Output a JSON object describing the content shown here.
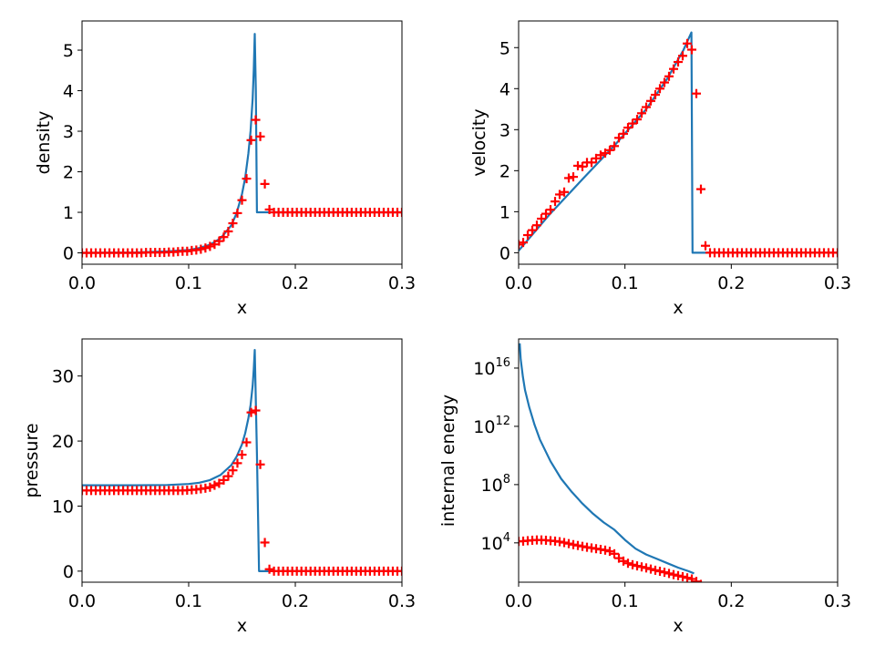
{
  "colors": {
    "line": "#1f77b4",
    "markers": "#ff0000"
  },
  "chart_data": [
    {
      "type": "line",
      "ylabel": "density",
      "xlabel": "x",
      "xlim": [
        0,
        0.3
      ],
      "ylim": [
        -0.28,
        5.72
      ],
      "xscale": "linear",
      "yscale": "linear",
      "xticks": [
        0.0,
        0.1,
        0.2,
        0.3
      ],
      "xtick_labels": [
        "0.0",
        "0.1",
        "0.2",
        "0.3"
      ],
      "yticks": [
        0,
        1,
        2,
        3,
        4,
        5
      ],
      "ytick_labels": [
        "0",
        "1",
        "2",
        "3",
        "4",
        "5"
      ],
      "grid": false,
      "series": [
        {
          "style": "line",
          "color": "#1f77b4",
          "x": [
            0,
            0.05,
            0.08,
            0.1,
            0.11,
            0.12,
            0.13,
            0.14,
            0.145,
            0.15,
            0.153,
            0.156,
            0.158,
            0.16,
            0.161,
            0.162,
            0.163,
            0.164,
            0.166,
            0.3
          ],
          "y": [
            0,
            0.01,
            0.04,
            0.07,
            0.12,
            0.2,
            0.36,
            0.68,
            0.98,
            1.45,
            1.85,
            2.45,
            3.0,
            3.8,
            4.5,
            5.4,
            4.0,
            1.0,
            1.0,
            1.0
          ]
        },
        {
          "style": "markers",
          "marker": "+",
          "color": "#ff0000",
          "x": [
            0.0,
            0.00429,
            0.00857,
            0.01286,
            0.01714,
            0.02143,
            0.02571,
            0.03,
            0.03429,
            0.03857,
            0.04286,
            0.04714,
            0.05143,
            0.05571,
            0.06,
            0.06429,
            0.06857,
            0.07286,
            0.07714,
            0.08143,
            0.08571,
            0.09,
            0.09429,
            0.09857,
            0.10286,
            0.10714,
            0.11143,
            0.11571,
            0.12,
            0.12429,
            0.12857,
            0.13286,
            0.13714,
            0.14143,
            0.14571,
            0.15,
            0.15429,
            0.15857,
            0.16286,
            0.16714,
            0.17143,
            0.17571,
            0.18,
            0.18429,
            0.18857,
            0.19286,
            0.19714,
            0.20143,
            0.20571,
            0.21,
            0.21429,
            0.21857,
            0.22286,
            0.22714,
            0.23143,
            0.23571,
            0.24,
            0.24429,
            0.24857,
            0.25286,
            0.25714,
            0.26143,
            0.26571,
            0.27,
            0.27429,
            0.27857,
            0.28286,
            0.28714,
            0.29143,
            0.29571,
            0.3
          ],
          "y": [
            0.0,
            0.0,
            0.0,
            0.0,
            0.0,
            0.0,
            0.0,
            0.0,
            0.0,
            0.0,
            0.0,
            0.0,
            0.0,
            0.0,
            0.01,
            0.01,
            0.01,
            0.01,
            0.01,
            0.02,
            0.02,
            0.03,
            0.04,
            0.04,
            0.06,
            0.07,
            0.09,
            0.12,
            0.16,
            0.21,
            0.29,
            0.39,
            0.53,
            0.73,
            0.98,
            1.3,
            1.83,
            2.78,
            3.28,
            2.87,
            1.7,
            1.07,
            1.0,
            1.0,
            1.0,
            1.0,
            1.0,
            1.0,
            1.0,
            1.0,
            1.0,
            1.0,
            1.0,
            1.0,
            1.0,
            1.0,
            1.0,
            1.0,
            1.0,
            1.0,
            1.0,
            1.0,
            1.0,
            1.0,
            1.0,
            1.0,
            1.0,
            1.0,
            1.0,
            1.0,
            1.0
          ]
        }
      ]
    },
    {
      "type": "line",
      "ylabel": "velocity",
      "xlabel": "x",
      "xlim": [
        0,
        0.3
      ],
      "ylim": [
        -0.28,
        5.65
      ],
      "xscale": "linear",
      "yscale": "linear",
      "xticks": [
        0.0,
        0.1,
        0.2,
        0.3
      ],
      "xtick_labels": [
        "0.0",
        "0.1",
        "0.2",
        "0.3"
      ],
      "yticks": [
        0,
        1,
        2,
        3,
        4,
        5
      ],
      "ytick_labels": [
        "0",
        "1",
        "2",
        "3",
        "4",
        "5"
      ],
      "grid": false,
      "series": [
        {
          "style": "line",
          "color": "#1f77b4",
          "x": [
            0,
            0.03,
            0.06,
            0.09,
            0.12,
            0.14,
            0.155,
            0.1625,
            0.1635,
            0.3
          ],
          "y": [
            0.05,
            0.96,
            1.79,
            2.61,
            3.5,
            4.25,
            4.94,
            5.37,
            0.0,
            0.0
          ]
        },
        {
          "style": "markers",
          "marker": "+",
          "color": "#ff0000",
          "x": [
            0.0,
            0.00429,
            0.00857,
            0.01286,
            0.01714,
            0.02143,
            0.02571,
            0.03,
            0.03429,
            0.03857,
            0.04286,
            0.04714,
            0.05143,
            0.05571,
            0.06,
            0.06429,
            0.06857,
            0.07286,
            0.07714,
            0.08143,
            0.08571,
            0.09,
            0.09429,
            0.09857,
            0.10286,
            0.10714,
            0.11143,
            0.11571,
            0.12,
            0.12429,
            0.12857,
            0.13286,
            0.13714,
            0.14143,
            0.14571,
            0.15,
            0.15429,
            0.15857,
            0.16286,
            0.16714,
            0.17143,
            0.17571,
            0.18,
            0.18429,
            0.18857,
            0.19286,
            0.19714,
            0.20143,
            0.20571,
            0.21,
            0.21429,
            0.21857,
            0.22286,
            0.22714,
            0.23143,
            0.23571,
            0.24,
            0.24429,
            0.24857,
            0.25286,
            0.25714,
            0.26143,
            0.26571,
            0.27,
            0.27429,
            0.27857,
            0.28286,
            0.28714,
            0.29143,
            0.29571,
            0.3
          ],
          "y": [
            0.2,
            0.25,
            0.43,
            0.55,
            0.67,
            0.83,
            0.95,
            1.05,
            1.25,
            1.42,
            1.48,
            1.82,
            1.85,
            2.12,
            2.1,
            2.2,
            2.2,
            2.3,
            2.38,
            2.43,
            2.5,
            2.6,
            2.8,
            2.9,
            3.05,
            3.15,
            3.25,
            3.4,
            3.55,
            3.7,
            3.85,
            4.0,
            4.15,
            4.3,
            4.48,
            4.65,
            4.8,
            5.1,
            4.95,
            3.88,
            1.55,
            0.17,
            0.0,
            0.0,
            0.0,
            0.0,
            0.0,
            0.0,
            0.0,
            0.0,
            0.0,
            0.0,
            0.0,
            0.0,
            0.0,
            0.0,
            0.0,
            0.0,
            0.0,
            0.0,
            0.0,
            0.0,
            0.0,
            0.0,
            0.0,
            0.0,
            0.0,
            0.0,
            0.0,
            0.0,
            0.0
          ]
        }
      ]
    },
    {
      "type": "line",
      "ylabel": "pressure",
      "xlabel": "x",
      "xlim": [
        0,
        0.3
      ],
      "ylim": [
        -1.7,
        35.7
      ],
      "xscale": "linear",
      "yscale": "linear",
      "xticks": [
        0.0,
        0.1,
        0.2,
        0.3
      ],
      "xtick_labels": [
        "0.0",
        "0.1",
        "0.2",
        "0.3"
      ],
      "yticks": [
        0,
        10,
        20,
        30
      ],
      "ytick_labels": [
        "0",
        "10",
        "20",
        "30"
      ],
      "grid": false,
      "series": [
        {
          "style": "line",
          "color": "#1f77b4",
          "x": [
            0,
            0.05,
            0.08,
            0.1,
            0.11,
            0.12,
            0.13,
            0.14,
            0.145,
            0.15,
            0.153,
            0.156,
            0.158,
            0.16,
            0.161,
            0.162,
            0.164,
            0.166,
            0.3
          ],
          "y": [
            13.2,
            13.2,
            13.25,
            13.4,
            13.6,
            14.0,
            14.8,
            16.3,
            17.6,
            19.5,
            21.2,
            23.5,
            25.5,
            28.5,
            31.0,
            34.0,
            18.0,
            0.0,
            0.0
          ]
        },
        {
          "style": "markers",
          "marker": "+",
          "color": "#ff0000",
          "x": [
            0.0,
            0.00429,
            0.00857,
            0.01286,
            0.01714,
            0.02143,
            0.02571,
            0.03,
            0.03429,
            0.03857,
            0.04286,
            0.04714,
            0.05143,
            0.05571,
            0.06,
            0.06429,
            0.06857,
            0.07286,
            0.07714,
            0.08143,
            0.08571,
            0.09,
            0.09429,
            0.09857,
            0.10286,
            0.10714,
            0.11143,
            0.11571,
            0.12,
            0.12429,
            0.12857,
            0.13286,
            0.13714,
            0.14143,
            0.14571,
            0.15,
            0.15429,
            0.15857,
            0.16286,
            0.16714,
            0.17143,
            0.17571,
            0.18,
            0.18429,
            0.18857,
            0.19286,
            0.19714,
            0.20143,
            0.20571,
            0.21,
            0.21429,
            0.21857,
            0.22286,
            0.22714,
            0.23143,
            0.23571,
            0.24,
            0.24429,
            0.24857,
            0.25286,
            0.25714,
            0.26143,
            0.26571,
            0.27,
            0.27429,
            0.27857,
            0.28286,
            0.28714,
            0.29143,
            0.29571,
            0.3
          ],
          "y": [
            12.4,
            12.4,
            12.4,
            12.4,
            12.4,
            12.4,
            12.4,
            12.4,
            12.4,
            12.4,
            12.4,
            12.4,
            12.4,
            12.4,
            12.4,
            12.4,
            12.4,
            12.4,
            12.4,
            12.4,
            12.4,
            12.4,
            12.4,
            12.45,
            12.5,
            12.55,
            12.65,
            12.75,
            12.9,
            13.2,
            13.5,
            14.0,
            14.6,
            15.5,
            16.6,
            17.9,
            19.8,
            24.4,
            24.7,
            16.4,
            4.4,
            0.3,
            0.0,
            0.0,
            0.0,
            0.0,
            0.0,
            0.0,
            0.0,
            0.0,
            0.0,
            0.0,
            0.0,
            0.0,
            0.0,
            0.0,
            0.0,
            0.0,
            0.0,
            0.0,
            0.0,
            0.0,
            0.0,
            0.0,
            0.0,
            0.0,
            0.0,
            0.0,
            0.0,
            0.0,
            0.0
          ]
        }
      ]
    },
    {
      "type": "line",
      "ylabel": "internal energy",
      "xlabel": "x",
      "xlim": [
        0,
        0.3
      ],
      "ylim": [
        1.3,
        18.0
      ],
      "xscale": "linear",
      "yscale": "log",
      "ylim_note": "log10 exponents",
      "xticks": [
        0.0,
        0.1,
        0.2,
        0.3
      ],
      "xtick_labels": [
        "0.0",
        "0.1",
        "0.2",
        "0.3"
      ],
      "yticks": [
        4,
        8,
        12,
        16
      ],
      "ytick_labels": [
        "10",
        "10",
        "10",
        "10"
      ],
      "ytick_exponents": [
        "4",
        "8",
        "12",
        "16"
      ],
      "grid": false,
      "series": [
        {
          "style": "line",
          "color": "#1f77b4",
          "x": [
            0.001,
            0.002,
            0.004,
            0.006,
            0.01,
            0.015,
            0.02,
            0.03,
            0.04,
            0.05,
            0.06,
            0.07,
            0.08,
            0.09,
            0.1,
            0.11,
            0.12,
            0.13,
            0.14,
            0.15,
            0.16,
            0.165
          ],
          "y": [
            17.7,
            16.6,
            15.4,
            14.5,
            13.3,
            12.1,
            11.1,
            9.6,
            8.4,
            7.5,
            6.7,
            6.0,
            5.4,
            4.9,
            4.2,
            3.6,
            3.2,
            2.9,
            2.6,
            2.3,
            2.05,
            1.9
          ]
        },
        {
          "style": "markers",
          "marker": "+",
          "color": "#ff0000",
          "x": [
            0.0,
            0.00429,
            0.00857,
            0.01286,
            0.01714,
            0.02143,
            0.02571,
            0.03,
            0.03429,
            0.03857,
            0.04286,
            0.04714,
            0.05143,
            0.05571,
            0.06,
            0.06429,
            0.06857,
            0.07286,
            0.07714,
            0.08143,
            0.08571,
            0.09,
            0.09429,
            0.09857,
            0.10286,
            0.10714,
            0.11143,
            0.11571,
            0.12,
            0.12429,
            0.12857,
            0.13286,
            0.13714,
            0.14143,
            0.14571,
            0.15,
            0.15429,
            0.15857,
            0.16286,
            0.16714,
            0.17143
          ],
          "y": [
            4.1,
            4.12,
            4.15,
            4.18,
            4.2,
            4.2,
            4.18,
            4.15,
            4.12,
            4.08,
            4.02,
            3.95,
            3.88,
            3.82,
            3.76,
            3.7,
            3.65,
            3.6,
            3.55,
            3.5,
            3.42,
            3.25,
            2.95,
            2.75,
            2.6,
            2.5,
            2.42,
            2.35,
            2.28,
            2.2,
            2.12,
            2.05,
            1.98,
            1.9,
            1.82,
            1.75,
            1.68,
            1.6,
            1.52,
            1.35,
            1.15
          ]
        }
      ]
    }
  ]
}
